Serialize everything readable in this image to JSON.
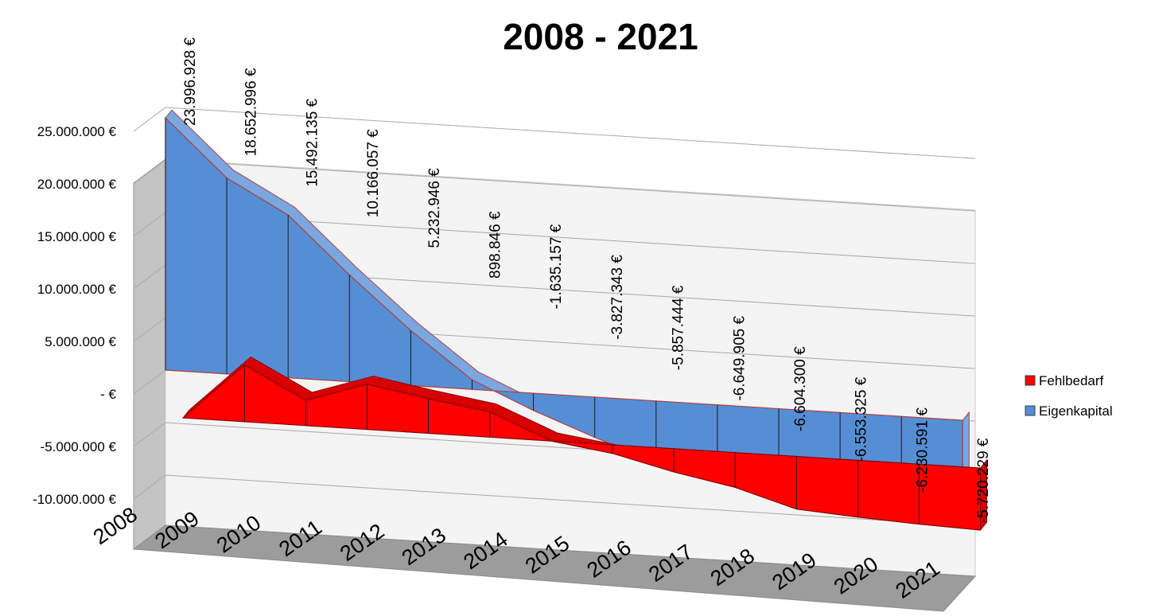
{
  "chart_data": {
    "type": "area",
    "title": "2008 - 2021",
    "xlabel": "",
    "ylabel": "",
    "categories": [
      "2008",
      "2009",
      "2010",
      "2011",
      "2012",
      "2013",
      "2014",
      "2015",
      "2016",
      "2017",
      "2018",
      "2019",
      "2020",
      "2021"
    ],
    "ylim": [
      -10000000,
      25000000
    ],
    "y_ticks": [
      {
        "value": 25000000,
        "label": "25.000.000 €"
      },
      {
        "value": 20000000,
        "label": "20.000.000 €"
      },
      {
        "value": 15000000,
        "label": "15.000.000 €"
      },
      {
        "value": 10000000,
        "label": "10.000.000 €"
      },
      {
        "value": 5000000,
        "label": "5.000.000 €"
      },
      {
        "value": 0,
        "label": "-   €"
      },
      {
        "value": -5000000,
        "label": "-5.000.000 €"
      },
      {
        "value": -10000000,
        "label": "-10.000.000 €"
      }
    ],
    "grid": true,
    "legend_position": "right",
    "series": [
      {
        "name": "Fehlbedarf",
        "color": "#ff0000",
        "values": [
          0,
          5400000,
          2400000,
          4300000,
          3300000,
          2400000,
          0,
          -800000,
          -2200000,
          -3300000,
          -5000000,
          -5400000,
          -5700000,
          -5900000
        ]
      },
      {
        "name": "Eigenkapital",
        "color": "#558ed5",
        "values": [
          23996928,
          18652996,
          15492135,
          10166057,
          5232946,
          898846,
          -1635157,
          -3827343,
          -5857444,
          -6649905,
          -6604300,
          -6553325,
          -6230591,
          -5720229
        ],
        "labels": [
          "23.996.928 €",
          "18.652.996 €",
          "15.492.135 €",
          "10.166.057 €",
          "5.232.946 €",
          "898.846 €",
          "-1.635.157 €",
          "-3.827.343 €",
          "-5.857.444 €",
          "-6.649.905 €",
          "-6.604.300 €",
          "-6.553.325 €",
          "-6.230.591 €",
          "-5.720.229 €"
        ]
      }
    ]
  }
}
